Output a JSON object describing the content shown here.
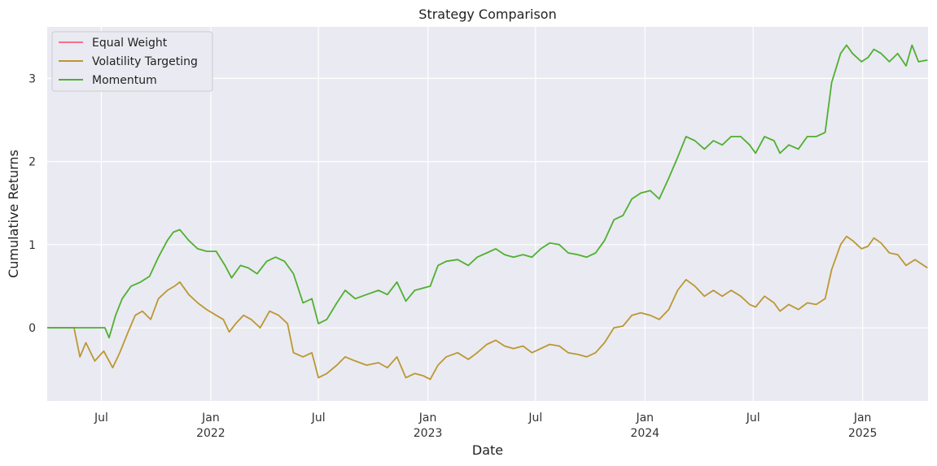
{
  "chart_data": {
    "type": "line",
    "title": "Strategy Comparison",
    "xlabel": "Date",
    "ylabel": "Cumulative Returns",
    "xlim": [
      "2021-04-01",
      "2025-04-21"
    ],
    "ylim": [
      -0.88,
      3.62
    ],
    "y_ticks": [
      0,
      1,
      2,
      3
    ],
    "x_ticks": [
      {
        "date": "2021-07-01",
        "label": "Jul",
        "sublabel": ""
      },
      {
        "date": "2022-01-01",
        "label": "Jan",
        "sublabel": "2022"
      },
      {
        "date": "2022-07-01",
        "label": "Jul",
        "sublabel": ""
      },
      {
        "date": "2023-01-01",
        "label": "Jan",
        "sublabel": "2023"
      },
      {
        "date": "2023-07-01",
        "label": "Jul",
        "sublabel": ""
      },
      {
        "date": "2024-01-01",
        "label": "Jan",
        "sublabel": "2024"
      },
      {
        "date": "2024-07-01",
        "label": "Jul",
        "sublabel": ""
      },
      {
        "date": "2025-01-01",
        "label": "Jan",
        "sublabel": "2025"
      }
    ],
    "grid": true,
    "legend_position": "top-left",
    "series": [
      {
        "name": "Equal Weight",
        "color": "#f77189",
        "points": []
      },
      {
        "name": "Volatility Targeting",
        "color": "#bb9832",
        "points": [
          [
            "2021-04-01",
            0.0
          ],
          [
            "2021-05-16",
            0.0
          ],
          [
            "2021-05-26",
            -0.35
          ],
          [
            "2021-06-05",
            -0.18
          ],
          [
            "2021-06-20",
            -0.4
          ],
          [
            "2021-07-05",
            -0.28
          ],
          [
            "2021-07-20",
            -0.48
          ],
          [
            "2021-08-01",
            -0.3
          ],
          [
            "2021-08-15",
            -0.05
          ],
          [
            "2021-08-27",
            0.15
          ],
          [
            "2021-09-08",
            0.2
          ],
          [
            "2021-09-22",
            0.1
          ],
          [
            "2021-10-05",
            0.35
          ],
          [
            "2021-10-20",
            0.45
          ],
          [
            "2021-11-01",
            0.5
          ],
          [
            "2021-11-10",
            0.55
          ],
          [
            "2021-11-25",
            0.4
          ],
          [
            "2021-12-10",
            0.3
          ],
          [
            "2021-12-25",
            0.22
          ],
          [
            "2022-01-10",
            0.15
          ],
          [
            "2022-01-22",
            0.1
          ],
          [
            "2022-02-01",
            -0.05
          ],
          [
            "2022-02-12",
            0.05
          ],
          [
            "2022-02-25",
            0.15
          ],
          [
            "2022-03-10",
            0.1
          ],
          [
            "2022-03-25",
            0.0
          ],
          [
            "2022-04-10",
            0.2
          ],
          [
            "2022-04-25",
            0.15
          ],
          [
            "2022-05-10",
            0.05
          ],
          [
            "2022-05-20",
            -0.3
          ],
          [
            "2022-06-05",
            -0.35
          ],
          [
            "2022-06-20",
            -0.3
          ],
          [
            "2022-07-01",
            -0.6
          ],
          [
            "2022-07-15",
            -0.55
          ],
          [
            "2022-08-01",
            -0.45
          ],
          [
            "2022-08-15",
            -0.35
          ],
          [
            "2022-09-01",
            -0.4
          ],
          [
            "2022-09-20",
            -0.45
          ],
          [
            "2022-10-10",
            -0.42
          ],
          [
            "2022-10-25",
            -0.48
          ],
          [
            "2022-11-10",
            -0.35
          ],
          [
            "2022-11-25",
            -0.6
          ],
          [
            "2022-12-10",
            -0.55
          ],
          [
            "2022-12-25",
            -0.58
          ],
          [
            "2023-01-05",
            -0.62
          ],
          [
            "2023-01-18",
            -0.45
          ],
          [
            "2023-02-01",
            -0.35
          ],
          [
            "2023-02-20",
            -0.3
          ],
          [
            "2023-03-10",
            -0.38
          ],
          [
            "2023-03-25",
            -0.3
          ],
          [
            "2023-04-10",
            -0.2
          ],
          [
            "2023-04-25",
            -0.15
          ],
          [
            "2023-05-10",
            -0.22
          ],
          [
            "2023-05-25",
            -0.25
          ],
          [
            "2023-06-10",
            -0.22
          ],
          [
            "2023-06-25",
            -0.3
          ],
          [
            "2023-07-10",
            -0.25
          ],
          [
            "2023-07-25",
            -0.2
          ],
          [
            "2023-08-10",
            -0.22
          ],
          [
            "2023-08-25",
            -0.3
          ],
          [
            "2023-09-10",
            -0.32
          ],
          [
            "2023-09-25",
            -0.35
          ],
          [
            "2023-10-10",
            -0.3
          ],
          [
            "2023-10-25",
            -0.18
          ],
          [
            "2023-11-10",
            0.0
          ],
          [
            "2023-11-25",
            0.02
          ],
          [
            "2023-12-10",
            0.15
          ],
          [
            "2023-12-25",
            0.18
          ],
          [
            "2024-01-10",
            0.15
          ],
          [
            "2024-01-25",
            0.1
          ],
          [
            "2024-02-10",
            0.22
          ],
          [
            "2024-02-25",
            0.45
          ],
          [
            "2024-03-10",
            0.58
          ],
          [
            "2024-03-25",
            0.5
          ],
          [
            "2024-04-10",
            0.38
          ],
          [
            "2024-04-25",
            0.45
          ],
          [
            "2024-05-10",
            0.38
          ],
          [
            "2024-05-25",
            0.45
          ],
          [
            "2024-06-10",
            0.38
          ],
          [
            "2024-06-25",
            0.28
          ],
          [
            "2024-07-05",
            0.25
          ],
          [
            "2024-07-20",
            0.38
          ],
          [
            "2024-08-05",
            0.3
          ],
          [
            "2024-08-15",
            0.2
          ],
          [
            "2024-08-30",
            0.28
          ],
          [
            "2024-09-15",
            0.22
          ],
          [
            "2024-09-30",
            0.3
          ],
          [
            "2024-10-15",
            0.28
          ],
          [
            "2024-10-30",
            0.35
          ],
          [
            "2024-11-10",
            0.7
          ],
          [
            "2024-11-25",
            1.0
          ],
          [
            "2024-12-05",
            1.1
          ],
          [
            "2024-12-15",
            1.05
          ],
          [
            "2024-12-30",
            0.95
          ],
          [
            "2025-01-10",
            0.98
          ],
          [
            "2025-01-20",
            1.08
          ],
          [
            "2025-02-01",
            1.02
          ],
          [
            "2025-02-15",
            0.9
          ],
          [
            "2025-03-01",
            0.88
          ],
          [
            "2025-03-15",
            0.75
          ],
          [
            "2025-03-30",
            0.82
          ],
          [
            "2025-04-20",
            0.72
          ]
        ]
      },
      {
        "name": "Momentum",
        "color": "#4fb030",
        "points": [
          [
            "2021-04-01",
            0.0
          ],
          [
            "2021-07-07",
            0.0
          ],
          [
            "2021-07-14",
            -0.12
          ],
          [
            "2021-07-25",
            0.15
          ],
          [
            "2021-08-05",
            0.35
          ],
          [
            "2021-08-20",
            0.5
          ],
          [
            "2021-09-05",
            0.55
          ],
          [
            "2021-09-20",
            0.62
          ],
          [
            "2021-10-05",
            0.85
          ],
          [
            "2021-10-20",
            1.05
          ],
          [
            "2021-10-30",
            1.15
          ],
          [
            "2021-11-10",
            1.18
          ],
          [
            "2021-11-25",
            1.05
          ],
          [
            "2021-12-10",
            0.95
          ],
          [
            "2021-12-25",
            0.92
          ],
          [
            "2022-01-10",
            0.92
          ],
          [
            "2022-01-25",
            0.75
          ],
          [
            "2022-02-05",
            0.6
          ],
          [
            "2022-02-20",
            0.75
          ],
          [
            "2022-03-05",
            0.72
          ],
          [
            "2022-03-20",
            0.65
          ],
          [
            "2022-04-05",
            0.8
          ],
          [
            "2022-04-20",
            0.85
          ],
          [
            "2022-05-05",
            0.8
          ],
          [
            "2022-05-20",
            0.65
          ],
          [
            "2022-06-05",
            0.3
          ],
          [
            "2022-06-20",
            0.35
          ],
          [
            "2022-07-01",
            0.05
          ],
          [
            "2022-07-15",
            0.1
          ],
          [
            "2022-08-01",
            0.3
          ],
          [
            "2022-08-15",
            0.45
          ],
          [
            "2022-09-01",
            0.35
          ],
          [
            "2022-09-20",
            0.4
          ],
          [
            "2022-10-10",
            0.45
          ],
          [
            "2022-10-25",
            0.4
          ],
          [
            "2022-11-10",
            0.55
          ],
          [
            "2022-11-25",
            0.32
          ],
          [
            "2022-12-10",
            0.45
          ],
          [
            "2022-12-25",
            0.48
          ],
          [
            "2023-01-05",
            0.5
          ],
          [
            "2023-01-18",
            0.75
          ],
          [
            "2023-02-01",
            0.8
          ],
          [
            "2023-02-20",
            0.82
          ],
          [
            "2023-03-10",
            0.75
          ],
          [
            "2023-03-25",
            0.85
          ],
          [
            "2023-04-10",
            0.9
          ],
          [
            "2023-04-25",
            0.95
          ],
          [
            "2023-05-10",
            0.88
          ],
          [
            "2023-05-25",
            0.85
          ],
          [
            "2023-06-10",
            0.88
          ],
          [
            "2023-06-25",
            0.85
          ],
          [
            "2023-07-10",
            0.95
          ],
          [
            "2023-07-25",
            1.02
          ],
          [
            "2023-08-10",
            1.0
          ],
          [
            "2023-08-25",
            0.9
          ],
          [
            "2023-09-10",
            0.88
          ],
          [
            "2023-09-25",
            0.85
          ],
          [
            "2023-10-10",
            0.9
          ],
          [
            "2023-10-25",
            1.05
          ],
          [
            "2023-11-10",
            1.3
          ],
          [
            "2023-11-25",
            1.35
          ],
          [
            "2023-12-10",
            1.55
          ],
          [
            "2023-12-25",
            1.62
          ],
          [
            "2024-01-10",
            1.65
          ],
          [
            "2024-01-25",
            1.55
          ],
          [
            "2024-02-10",
            1.8
          ],
          [
            "2024-02-25",
            2.05
          ],
          [
            "2024-03-10",
            2.3
          ],
          [
            "2024-03-25",
            2.25
          ],
          [
            "2024-04-10",
            2.15
          ],
          [
            "2024-04-25",
            2.25
          ],
          [
            "2024-05-10",
            2.2
          ],
          [
            "2024-05-25",
            2.3
          ],
          [
            "2024-06-10",
            2.3
          ],
          [
            "2024-06-25",
            2.2
          ],
          [
            "2024-07-05",
            2.1
          ],
          [
            "2024-07-20",
            2.3
          ],
          [
            "2024-08-05",
            2.25
          ],
          [
            "2024-08-15",
            2.1
          ],
          [
            "2024-08-30",
            2.2
          ],
          [
            "2024-09-15",
            2.15
          ],
          [
            "2024-09-30",
            2.3
          ],
          [
            "2024-10-15",
            2.3
          ],
          [
            "2024-10-30",
            2.35
          ],
          [
            "2024-11-10",
            2.95
          ],
          [
            "2024-11-25",
            3.3
          ],
          [
            "2024-12-05",
            3.4
          ],
          [
            "2024-12-15",
            3.3
          ],
          [
            "2024-12-30",
            3.2
          ],
          [
            "2025-01-10",
            3.25
          ],
          [
            "2025-01-20",
            3.35
          ],
          [
            "2025-02-01",
            3.3
          ],
          [
            "2025-02-15",
            3.2
          ],
          [
            "2025-03-01",
            3.3
          ],
          [
            "2025-03-15",
            3.15
          ],
          [
            "2025-03-25",
            3.4
          ],
          [
            "2025-04-05",
            3.2
          ],
          [
            "2025-04-20",
            3.22
          ]
        ]
      }
    ]
  }
}
